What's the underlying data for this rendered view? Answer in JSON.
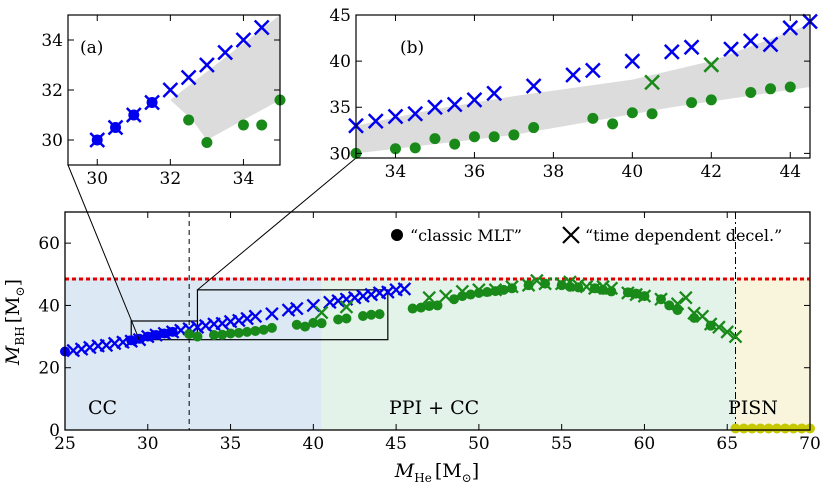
{
  "colors": {
    "blue": "#0000ee",
    "green": "#198a19",
    "yellow": "#c8c800",
    "red": "#e00000",
    "cc_region": "#dce8f4",
    "ppi_region": "#e4f3ea",
    "pisn_region": "#f8f5dc",
    "band": "#dcdcdc"
  },
  "chart_data": [
    {
      "id": "main",
      "type": "scatter",
      "xlabel_main": "M",
      "xlabel_sub": "He",
      "xlabel_unit": "[M",
      "xlabel_unit_sub": "⊙",
      "xlabel_close": "]",
      "ylabel_main": "M",
      "ylabel_sub": "BH",
      "ylabel_unit": "[M",
      "ylabel_unit_sub": "⊙",
      "ylabel_close": "]",
      "xlim": [
        25,
        70
      ],
      "ylim": [
        0,
        70
      ],
      "xticks": [
        25,
        30,
        35,
        40,
        45,
        50,
        55,
        60,
        65,
        70
      ],
      "yticks": [
        0,
        20,
        40,
        60
      ],
      "regions": [
        {
          "label": "CC",
          "x0": 25,
          "x1": 40.5,
          "color_key": "cc_region",
          "text_color_key": "blue",
          "label_x": 27.3,
          "label_y": 8
        },
        {
          "label": "PPI + CC",
          "x0": 40.5,
          "x1": 65.5,
          "color_key": "ppi_region",
          "text_color_key": "green",
          "label_x": 48.5,
          "label_y": 8
        },
        {
          "label": "PISN",
          "x0": 65.5,
          "x1": 70,
          "color_key": "pisn_region",
          "text_color_key": "yellow",
          "label_x": 67.3,
          "label_y": 8
        }
      ],
      "region_ymax": 49,
      "hline_red_y": 48.5,
      "vlines": [
        {
          "x": 32.5,
          "style": "dashed"
        },
        {
          "x": 65.5,
          "style": "dashdot"
        }
      ],
      "zoom_boxes": [
        {
          "x0": 29,
          "x1": 33,
          "y0": 29,
          "y1": 35
        },
        {
          "x0": 33,
          "x1": 44.5,
          "y0": 29,
          "y1": 45
        }
      ],
      "legend": [
        {
          "marker": "circle",
          "label": "“classic MLT”"
        },
        {
          "marker": "x",
          "label": "“time dependent decel.”"
        }
      ],
      "series": [
        {
          "name": "time dependent decel. (CC)",
          "marker": "x",
          "color_key": "blue",
          "x": [
            25.5,
            26,
            26.5,
            27,
            27.5,
            28,
            28.5,
            29,
            29.5,
            30,
            30.5,
            31,
            31.5,
            32,
            32.5,
            33,
            33.5,
            34,
            34.5,
            35,
            35.5,
            36,
            36.5,
            37.5,
            38.5,
            39,
            40,
            41,
            41.5,
            42,
            42.5,
            43,
            43.5,
            44,
            44.5,
            45,
            45.5
          ],
          "y": [
            25.5,
            26,
            26.5,
            27,
            27.2,
            27.8,
            28.2,
            28.5,
            29,
            30,
            30.5,
            31,
            31.5,
            32,
            32.5,
            33,
            33.5,
            34,
            34.2,
            34.8,
            35.2,
            35.8,
            36.5,
            37.3,
            38.5,
            39,
            40,
            41,
            41.5,
            42,
            42.5,
            43,
            43.5,
            44,
            44.3,
            45,
            45.3
          ]
        },
        {
          "name": "classic MLT (CC)",
          "marker": "circle",
          "color_key": "blue",
          "x": [
            25,
            29,
            29.5,
            30,
            30.5,
            31,
            31.5
          ],
          "y": [
            25.2,
            28.8,
            29.3,
            30,
            30.5,
            31,
            31.5
          ]
        },
        {
          "name": "classic MLT (green)",
          "marker": "circle",
          "color_key": "green",
          "x": [
            32.5,
            33,
            34,
            34.5,
            35,
            35.5,
            36,
            36.5,
            37,
            37.5,
            39,
            39.5,
            40,
            40.5,
            41.5,
            42,
            43,
            43.5,
            44,
            46,
            46.5,
            47,
            47.5,
            48.5,
            49,
            49.5,
            50,
            50.5,
            51,
            51.5,
            52,
            53,
            54,
            55,
            55.5,
            56,
            57,
            57.5,
            58,
            59,
            59.5,
            60,
            61,
            61.5,
            62,
            63,
            64
          ],
          "y": [
            30.8,
            30,
            30.5,
            30.6,
            31,
            31.2,
            31.5,
            31.8,
            32.2,
            32.8,
            33.8,
            33.2,
            34.4,
            34.3,
            35.5,
            35.8,
            36.6,
            37,
            37.2,
            39,
            39.3,
            39.8,
            40,
            42,
            43,
            43.5,
            44,
            44.3,
            44.6,
            45,
            45.5,
            46.5,
            47,
            46.5,
            46,
            45.8,
            45.5,
            45,
            44.5,
            44.2,
            43.8,
            43,
            42,
            40,
            38.5,
            36,
            33.5
          ]
        },
        {
          "name": "time dependent decel. (green)",
          "marker": "x",
          "color_key": "green",
          "x": [
            40.5,
            42,
            47,
            48,
            49,
            50,
            51,
            52,
            53,
            53.5,
            54,
            55,
            55.5,
            56,
            56.5,
            57,
            57.5,
            58,
            59,
            59.5,
            60,
            61,
            62,
            62.5,
            63,
            63.5,
            64,
            64.5,
            65,
            65.5
          ],
          "y": [
            37.7,
            39.5,
            42.5,
            43,
            44.5,
            45,
            45,
            46,
            46.5,
            48,
            47,
            47,
            47.5,
            46.5,
            46,
            45.5,
            46,
            45.5,
            44,
            43.5,
            43,
            42,
            40.5,
            42.5,
            37.5,
            36.5,
            34,
            33,
            31.5,
            30
          ]
        },
        {
          "name": "PISN",
          "marker": "circle",
          "color_key": "yellow",
          "x": [
            65.5,
            66,
            66.5,
            67,
            67.5,
            68,
            68.5,
            69,
            69.5,
            70
          ],
          "y": [
            0.5,
            0.5,
            0.5,
            0.5,
            0.5,
            0.5,
            0.5,
            0.5,
            0.5,
            0.5
          ]
        }
      ]
    },
    {
      "id": "inset_a",
      "type": "scatter",
      "label": "(a)",
      "xlim": [
        29.2,
        35
      ],
      "ylim": [
        29,
        35
      ],
      "xticks": [
        30,
        32,
        34
      ],
      "yticks": [
        30,
        32,
        34
      ],
      "band": {
        "upper": [
          [
            32,
            31.6
          ],
          [
            35,
            35
          ]
        ],
        "lower": [
          [
            32,
            31.6
          ],
          [
            32.6,
            30.8
          ],
          [
            33,
            30
          ],
          [
            35,
            31.6
          ]
        ]
      },
      "series": [
        {
          "name": "classic MLT",
          "marker": "circle",
          "color_key": "blue",
          "x": [
            30,
            30.5,
            31,
            31.5
          ],
          "y": [
            30,
            30.5,
            31,
            31.5
          ]
        },
        {
          "name": "time dependent decel.",
          "marker": "x",
          "color_key": "blue",
          "x": [
            30,
            30.5,
            31,
            31.5,
            32,
            32.5,
            33,
            33.5,
            34,
            34.5
          ],
          "y": [
            30,
            30.5,
            31,
            31.5,
            32,
            32.5,
            33,
            33.5,
            34,
            34.5
          ]
        },
        {
          "name": "classic MLT (green)",
          "marker": "circle",
          "color_key": "green",
          "x": [
            32.5,
            33,
            34,
            34.5,
            35
          ],
          "y": [
            30.8,
            29.9,
            30.6,
            30.6,
            31.6
          ]
        }
      ]
    },
    {
      "id": "inset_b",
      "type": "scatter",
      "label": "(b)",
      "xlim": [
        33,
        44.5
      ],
      "ylim": [
        29.5,
        45
      ],
      "xticks": [
        34,
        36,
        38,
        40,
        42,
        44
      ],
      "yticks": [
        30,
        35,
        40,
        45
      ],
      "band": {
        "upper": [
          [
            33,
            33
          ],
          [
            35,
            34.8
          ],
          [
            37,
            36.2
          ],
          [
            40,
            38
          ],
          [
            42,
            40
          ],
          [
            44.5,
            44
          ]
        ],
        "lower": [
          [
            44.5,
            37.2
          ],
          [
            41,
            35
          ],
          [
            39,
            33.5
          ],
          [
            37,
            32
          ],
          [
            35,
            31
          ],
          [
            33,
            30
          ]
        ]
      },
      "series": [
        {
          "name": "time dependent decel.",
          "marker": "x",
          "color_key": "blue",
          "x": [
            33,
            33.5,
            34,
            34.5,
            35,
            35.5,
            36,
            36.5,
            37.5,
            38.5,
            39,
            40,
            41,
            41.5,
            42.5,
            43,
            43.5,
            44,
            44.5
          ],
          "y": [
            33,
            33.5,
            34,
            34.3,
            35,
            35.3,
            35.8,
            36.5,
            37.3,
            38.5,
            39,
            40,
            41,
            41.5,
            41.3,
            42.2,
            41.8,
            43.6,
            44.3
          ]
        },
        {
          "name": "time dependent decel. (green)",
          "marker": "x",
          "color_key": "green",
          "x": [
            40.5,
            42
          ],
          "y": [
            37.7,
            39.6
          ]
        },
        {
          "name": "classic MLT (green)",
          "marker": "circle",
          "color_key": "green",
          "x": [
            33,
            34,
            34.5,
            35,
            35.5,
            36,
            36.5,
            37,
            37.5,
            39,
            39.5,
            40,
            40.5,
            41.5,
            42,
            43,
            43.5,
            44
          ],
          "y": [
            30,
            30.5,
            30.6,
            31.6,
            31,
            31.8,
            31.8,
            32,
            32.8,
            33.8,
            33.2,
            34.4,
            34.3,
            35.5,
            35.8,
            36.6,
            37,
            37.2
          ]
        }
      ]
    }
  ]
}
